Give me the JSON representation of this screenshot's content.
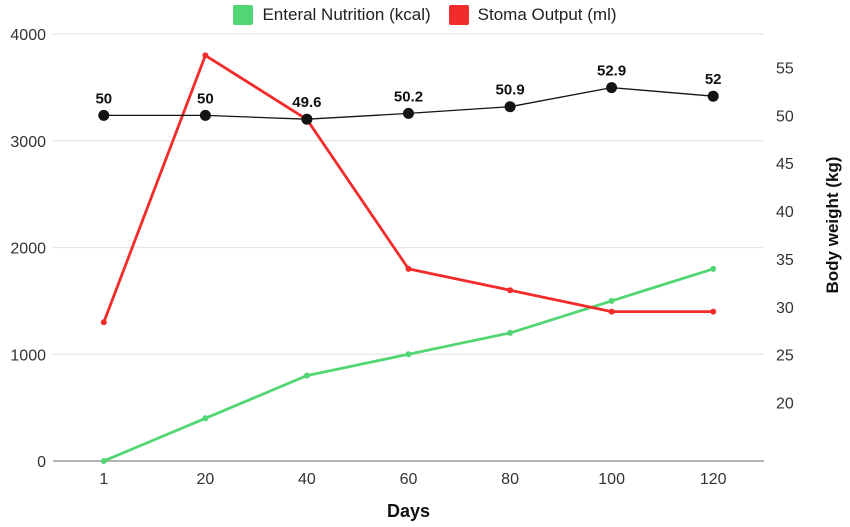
{
  "chart_data": {
    "type": "line",
    "title": "",
    "xlabel": "Days",
    "x_tick_labels": [
      "1",
      "20",
      "40",
      "60",
      "80",
      "100",
      "120"
    ],
    "left_axis": {
      "ticks": [
        0,
        1000,
        2000,
        3000,
        4000
      ],
      "range": [
        0,
        4000
      ]
    },
    "right_axis": {
      "label": "Body weight (kg)",
      "ticks": [
        55,
        50,
        45,
        40,
        35,
        30,
        25,
        20
      ]
    },
    "grid": "horizontal",
    "legend_position": "top-center",
    "legend": [
      {
        "label": "Enteral Nutrition (kcal)",
        "color": "#52d674"
      },
      {
        "label": "Stoma Output (ml)",
        "color": "#f22b2b"
      }
    ],
    "series": [
      {
        "name": "Enteral Nutrition (kcal)",
        "axis": "left",
        "color": "#52d674",
        "values": [
          0,
          400,
          800,
          1000,
          1200,
          1500,
          1800
        ]
      },
      {
        "name": "Stoma Output (ml)",
        "axis": "right_is_false_left",
        "color": "#f22b2b",
        "values": [
          1300,
          3800,
          3200,
          1800,
          1600,
          1400,
          1400
        ]
      },
      {
        "name": "Body weight (kg)",
        "axis": "right",
        "color": "#141414",
        "values": [
          50,
          50,
          49.6,
          50.2,
          50.9,
          52.9,
          52
        ],
        "point_labels": [
          "50",
          "50",
          "49.6",
          "50.2",
          "50.9",
          "52.9",
          "52"
        ]
      }
    ],
    "colors": {
      "grid": "#e7e7e7",
      "baseline": "#b3b3b3",
      "tick_text": "#333333",
      "label_text": "#111111"
    }
  }
}
